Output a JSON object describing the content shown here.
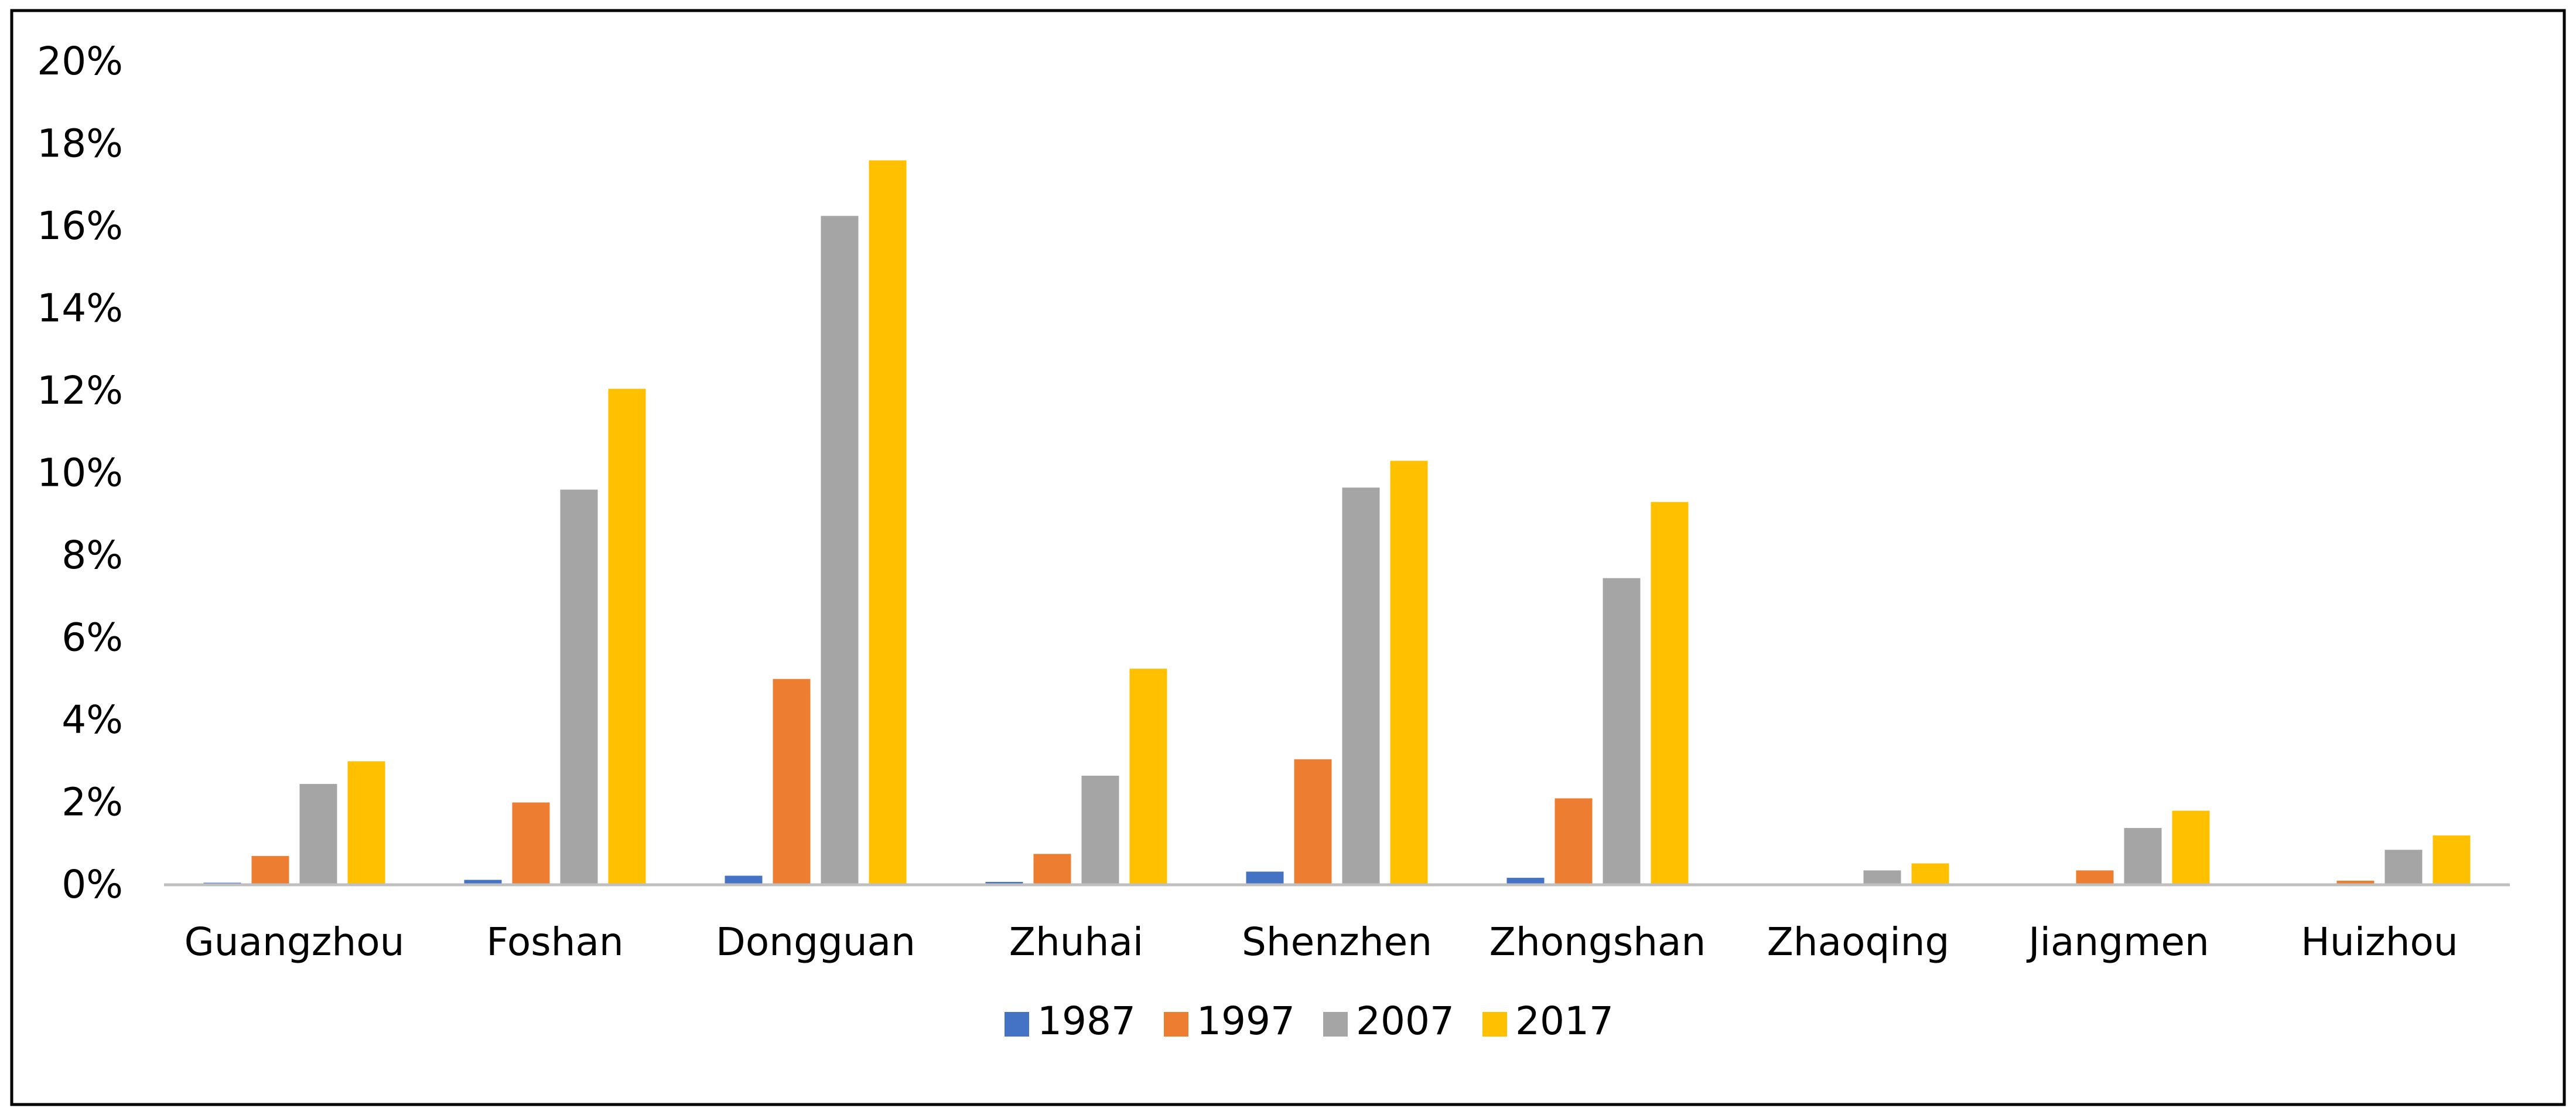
{
  "chart_data": {
    "type": "bar",
    "title": "",
    "xlabel": "",
    "ylabel": "",
    "ylim": [
      0,
      20
    ],
    "y_tick_values": [
      0,
      2,
      4,
      6,
      8,
      10,
      12,
      14,
      16,
      18,
      20
    ],
    "y_tick_labels": [
      "0%",
      "2%",
      "4%",
      "6%",
      "8%",
      "10%",
      "12%",
      "14%",
      "16%",
      "18%",
      "20%"
    ],
    "grid": false,
    "legend_position": "bottom",
    "categories": [
      "Guangzhou",
      "Foshan",
      "Dongguan",
      "Zhuhai",
      "Shenzhen",
      "Zhongshan",
      "Zhaoqing",
      "Jiangmen",
      "Huizhou"
    ],
    "series": [
      {
        "name": "1987",
        "color": "#4472C4",
        "values": [
          0.05,
          0.12,
          0.22,
          0.07,
          0.32,
          0.17,
          0.0,
          0.0,
          0.0
        ]
      },
      {
        "name": "1997",
        "color": "#ED7D31",
        "values": [
          0.7,
          2.0,
          5.0,
          0.75,
          3.05,
          2.1,
          0.0,
          0.35,
          0.1
        ]
      },
      {
        "name": "2007",
        "color": "#A5A5A5",
        "values": [
          2.45,
          9.6,
          16.25,
          2.65,
          9.65,
          7.45,
          0.35,
          1.38,
          0.85
        ]
      },
      {
        "name": "2017",
        "color": "#FFC000",
        "values": [
          3.0,
          12.05,
          17.6,
          5.25,
          10.3,
          9.3,
          0.52,
          1.8,
          1.2
        ]
      }
    ]
  }
}
